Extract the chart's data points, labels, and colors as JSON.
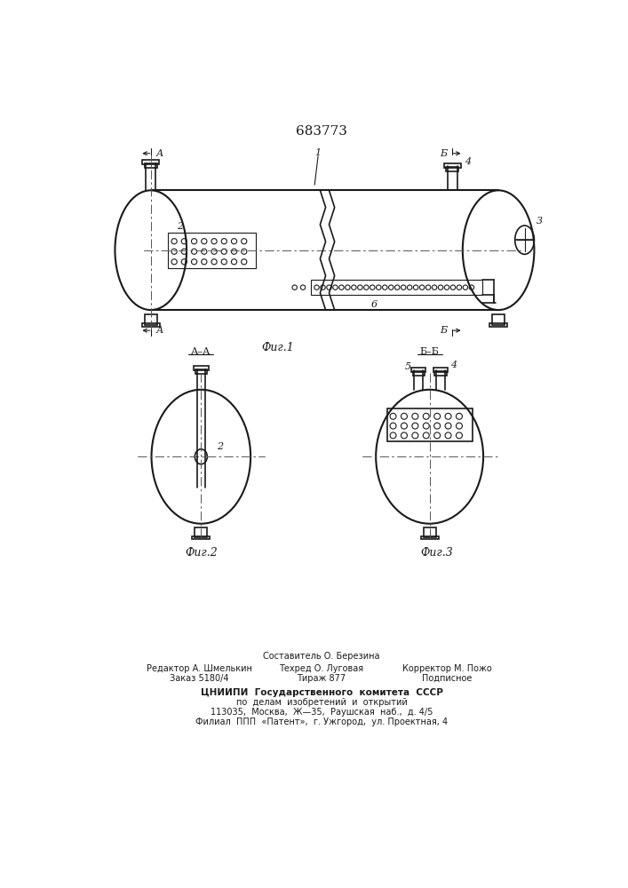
{
  "title": "683773",
  "bg_color": "#ffffff",
  "line_color": "#1a1a1a",
  "fig1_label": "Фиг.1",
  "fig2_label": "Фиг.2",
  "fig3_label": "Фиг.3",
  "footer_col1_line1": "Редактор А. Шмелькин",
  "footer_col1_line2": "Заказ 5180/4",
  "footer_col2_line0": "Составитель О. Березина",
  "footer_col2_line1": "Техред О. Луговая",
  "footer_col2_line2": "Тираж 877",
  "footer_col3_line1": "Корректор М. Пожо",
  "footer_col3_line2": "Подписное",
  "footer_cniip1": "ЦНИИПИ  Государственного  комитета  СССР",
  "footer_cniip2": "по  делам  изобретений  и  открытий",
  "footer_addr1": "113035,  Москва,  Ж—35,  Раушская  наб.,  д. 4/5",
  "footer_addr2": "Филиал  ППП  «Патент»,  г. Ужгород,  ул. Проектная, 4"
}
